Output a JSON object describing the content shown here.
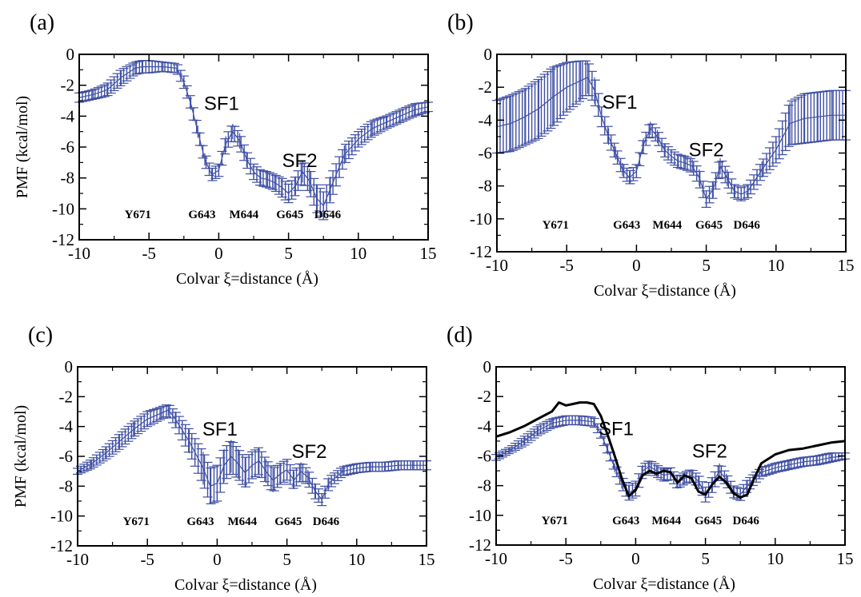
{
  "chart_data": [
    {
      "type": "line",
      "panel": "(a)",
      "xlabel": "Colvar ξ=distance  (Å)",
      "ylabel": "PMF (kcal/mol)",
      "xlim": [
        -10,
        15
      ],
      "ylim": [
        -12,
        0
      ],
      "xticks": [
        -10,
        -5,
        0,
        5,
        10,
        15
      ],
      "yticks": [
        0,
        -2,
        -4,
        -6,
        -8,
        -10,
        -12
      ],
      "annotations": [
        {
          "text": "SF1",
          "x": 0.2,
          "y": -3.6
        },
        {
          "text": "SF2",
          "x": 5.8,
          "y": -7.3
        }
      ],
      "residues": [
        {
          "text": "Y671",
          "x": -5.8
        },
        {
          "text": "G643",
          "x": -1.2
        },
        {
          "text": "M644",
          "x": 1.8
        },
        {
          "text": "G645",
          "x": 5.1
        },
        {
          "text": "D646",
          "x": 7.8
        }
      ],
      "series": [
        {
          "color": "#3f4fa3",
          "x": [
            -10,
            -9,
            -8,
            -7,
            -6,
            -5.5,
            -5,
            -4,
            -3,
            -2.5,
            -2,
            -1.5,
            -1,
            -0.5,
            0,
            0.5,
            1,
            1.5,
            2,
            2.5,
            3,
            3.5,
            4,
            4.5,
            5,
            5.5,
            6,
            6.5,
            7,
            7.5,
            8,
            9,
            10,
            11,
            12,
            13,
            14,
            15
          ],
          "y": [
            -2.8,
            -2.6,
            -2.3,
            -1.5,
            -0.9,
            -0.8,
            -0.8,
            -0.8,
            -0.9,
            -1.8,
            -3.2,
            -5.0,
            -6.8,
            -7.8,
            -7.5,
            -5.8,
            -5.0,
            -5.6,
            -6.8,
            -7.6,
            -8.0,
            -8.1,
            -8.3,
            -8.6,
            -9.0,
            -8.5,
            -7.6,
            -8.2,
            -9.3,
            -9.8,
            -8.7,
            -6.5,
            -5.5,
            -4.8,
            -4.4,
            -4.0,
            -3.6,
            -3.4
          ],
          "err": [
            0.3,
            0.3,
            0.4,
            0.5,
            0.4,
            0.4,
            0.4,
            0.3,
            0.3,
            0.4,
            0.4,
            0.4,
            0.4,
            0.4,
            0.4,
            0.5,
            0.5,
            0.5,
            0.5,
            0.5,
            0.5,
            0.5,
            0.5,
            0.6,
            0.6,
            0.6,
            0.7,
            0.8,
            0.9,
            0.9,
            0.8,
            0.6,
            0.5,
            0.5,
            0.4,
            0.4,
            0.4,
            0.3
          ]
        }
      ]
    },
    {
      "type": "line",
      "panel": "(b)",
      "xlabel": "Colvar ξ=distance  (Å)",
      "ylabel": "",
      "xlim": [
        -10,
        15
      ],
      "ylim": [
        -12,
        0
      ],
      "xticks": [
        -10,
        -5,
        0,
        5,
        10,
        15
      ],
      "yticks": [
        0,
        -2,
        -4,
        -6,
        -8,
        -10,
        -12
      ],
      "annotations": [
        {
          "text": "SF1",
          "x": -1.2,
          "y": -3.3
        },
        {
          "text": "SF2",
          "x": 5.0,
          "y": -6.2
        }
      ],
      "residues": [
        {
          "text": "Y671",
          "x": -5.8
        },
        {
          "text": "G643",
          "x": -0.7
        },
        {
          "text": "M644",
          "x": 2.2
        },
        {
          "text": "G645",
          "x": 5.2
        },
        {
          "text": "D646",
          "x": 7.9
        }
      ],
      "series": [
        {
          "color": "#3f4fa3",
          "x": [
            -10,
            -9,
            -8,
            -7,
            -6,
            -5,
            -4,
            -3.5,
            -3,
            -2.5,
            -2,
            -1.5,
            -1,
            -0.5,
            0,
            0.5,
            1,
            1.5,
            2,
            2.5,
            3,
            3.5,
            4,
            4.5,
            5,
            5.5,
            6,
            6.5,
            7,
            7.5,
            8,
            9,
            10,
            11,
            12,
            13,
            14,
            15
          ],
          "y": [
            -4.4,
            -4.2,
            -3.8,
            -3.3,
            -2.6,
            -2.0,
            -1.6,
            -1.4,
            -2.2,
            -3.8,
            -5.0,
            -6.0,
            -7.0,
            -7.5,
            -7.1,
            -5.5,
            -4.5,
            -5.0,
            -5.8,
            -6.2,
            -6.5,
            -6.6,
            -6.8,
            -7.5,
            -8.8,
            -8.2,
            -6.8,
            -7.5,
            -8.3,
            -8.5,
            -8.3,
            -7.0,
            -5.8,
            -4.2,
            -3.9,
            -3.8,
            -3.7,
            -3.7
          ],
          "err": [
            1.6,
            1.7,
            1.7,
            1.8,
            1.8,
            1.5,
            1.2,
            1.0,
            0.8,
            0.6,
            0.5,
            0.4,
            0.4,
            0.4,
            0.4,
            0.4,
            0.4,
            0.4,
            0.4,
            0.4,
            0.4,
            0.4,
            0.4,
            0.5,
            0.5,
            0.5,
            0.5,
            0.5,
            0.4,
            0.4,
            0.4,
            0.5,
            0.8,
            1.3,
            1.5,
            1.5,
            1.5,
            1.5
          ]
        }
      ]
    },
    {
      "type": "line",
      "panel": "(c)",
      "xlabel": "Colvar ξ=distance  (Å)",
      "ylabel": "PMF (kcal/mol)",
      "xlim": [
        -10,
        15
      ],
      "ylim": [
        -12,
        0
      ],
      "xticks": [
        -10,
        -5,
        0,
        5,
        10,
        15
      ],
      "yticks": [
        0,
        -2,
        -4,
        -6,
        -8,
        -10,
        -12
      ],
      "annotations": [
        {
          "text": "SF1",
          "x": 0.2,
          "y": -4.6
        },
        {
          "text": "SF2",
          "x": 6.6,
          "y": -6.1
        }
      ],
      "residues": [
        {
          "text": "Y671",
          "x": -5.8
        },
        {
          "text": "G643",
          "x": -1.2
        },
        {
          "text": "M644",
          "x": 1.8
        },
        {
          "text": "G645",
          "x": 5.1
        },
        {
          "text": "D646",
          "x": 7.8
        }
      ],
      "series": [
        {
          "color": "#3f4fa3",
          "x": [
            -10,
            -9,
            -8,
            -7,
            -6,
            -5,
            -4,
            -3.5,
            -3,
            -2,
            -1,
            -0.5,
            0,
            0.5,
            1,
            1.5,
            2,
            2.5,
            3,
            3.5,
            4,
            4.5,
            5,
            5.5,
            6,
            6.5,
            7,
            7.5,
            8,
            9,
            10,
            11,
            12,
            13,
            14,
            15
          ],
          "y": [
            -7.0,
            -6.5,
            -5.8,
            -5.0,
            -4.2,
            -3.5,
            -3.1,
            -2.9,
            -3.5,
            -5.0,
            -6.8,
            -8.0,
            -7.8,
            -6.6,
            -6.0,
            -6.5,
            -7.1,
            -6.6,
            -6.3,
            -7.0,
            -7.6,
            -7.2,
            -6.9,
            -7.6,
            -7.0,
            -7.4,
            -8.3,
            -8.9,
            -7.8,
            -7.0,
            -6.8,
            -6.7,
            -6.7,
            -6.6,
            -6.6,
            -6.6
          ],
          "err": [
            0.2,
            0.3,
            0.4,
            0.5,
            0.5,
            0.5,
            0.4,
            0.4,
            0.5,
            0.8,
            1.1,
            1.2,
            1.2,
            1.1,
            1.1,
            1.0,
            1.0,
            0.9,
            0.9,
            0.8,
            0.8,
            0.7,
            0.7,
            0.6,
            0.6,
            0.5,
            0.5,
            0.4,
            0.4,
            0.3,
            0.3,
            0.3,
            0.3,
            0.3,
            0.3,
            0.3
          ]
        }
      ]
    },
    {
      "type": "line",
      "panel": "(d)",
      "xlabel": "Colvar ξ=distance  (Å)",
      "ylabel": "",
      "xlim": [
        -10,
        15
      ],
      "ylim": [
        -12,
        0
      ],
      "xticks": [
        -10,
        -5,
        0,
        5,
        10,
        15
      ],
      "yticks": [
        0,
        -2,
        -4,
        -6,
        -8,
        -10,
        -12
      ],
      "annotations": [
        {
          "text": "SF1",
          "x": -1.4,
          "y": -4.6
        },
        {
          "text": "SF2",
          "x": 5.3,
          "y": -6.1
        }
      ],
      "residues": [
        {
          "text": "Y671",
          "x": -5.8
        },
        {
          "text": "G643",
          "x": -0.7
        },
        {
          "text": "M644",
          "x": 2.2
        },
        {
          "text": "G645",
          "x": 5.2
        },
        {
          "text": "D646",
          "x": 7.9
        }
      ],
      "series": [
        {
          "color": "#3f4fa3",
          "x": [
            -10,
            -9,
            -8,
            -7,
            -6,
            -5,
            -4,
            -3,
            -2.5,
            -2,
            -1.5,
            -1,
            -0.5,
            0,
            0.5,
            1,
            1.5,
            2,
            2.5,
            3,
            3.5,
            4,
            4.5,
            5,
            5.5,
            6,
            6.5,
            7,
            7.5,
            8,
            9,
            10,
            11,
            12,
            13,
            14,
            15
          ],
          "y": [
            -6.1,
            -5.6,
            -5.0,
            -4.3,
            -3.8,
            -3.6,
            -3.6,
            -3.7,
            -4.5,
            -5.6,
            -6.8,
            -7.8,
            -8.5,
            -8.2,
            -7.0,
            -6.7,
            -7.0,
            -7.3,
            -7.2,
            -7.8,
            -7.5,
            -7.3,
            -7.7,
            -8.6,
            -7.9,
            -7.0,
            -7.6,
            -8.4,
            -8.6,
            -8.0,
            -7.1,
            -6.8,
            -6.6,
            -6.4,
            -6.3,
            -6.1,
            -6.0
          ],
          "err": [
            0.2,
            0.2,
            0.3,
            0.3,
            0.3,
            0.3,
            0.3,
            0.3,
            0.3,
            0.3,
            0.3,
            0.4,
            0.5,
            0.5,
            0.4,
            0.4,
            0.4,
            0.4,
            0.4,
            0.4,
            0.4,
            0.4,
            0.4,
            0.5,
            0.5,
            0.5,
            0.4,
            0.4,
            0.4,
            0.4,
            0.3,
            0.3,
            0.3,
            0.3,
            0.3,
            0.3,
            0.2
          ]
        },
        {
          "color": "#000000",
          "x": [
            -10,
            -9,
            -8,
            -7,
            -6,
            -5.5,
            -5,
            -4.5,
            -4,
            -3.5,
            -3,
            -2.5,
            -2,
            -1.5,
            -1,
            -0.5,
            0,
            0.5,
            1,
            1.5,
            2,
            2.5,
            3,
            3.5,
            4,
            4.5,
            5,
            5.5,
            6,
            6.5,
            7,
            7.5,
            8,
            8.5,
            9,
            10,
            11,
            12,
            13,
            14,
            15
          ],
          "y": [
            -4.7,
            -4.4,
            -4.0,
            -3.5,
            -3.0,
            -2.4,
            -2.6,
            -2.5,
            -2.4,
            -2.4,
            -2.5,
            -3.3,
            -4.6,
            -6.0,
            -7.5,
            -8.7,
            -8.3,
            -7.3,
            -7.0,
            -7.2,
            -7.0,
            -7.1,
            -7.8,
            -7.3,
            -7.5,
            -8.4,
            -8.6,
            -7.9,
            -7.4,
            -7.8,
            -8.5,
            -8.8,
            -8.6,
            -7.5,
            -6.5,
            -5.9,
            -5.6,
            -5.5,
            -5.3,
            -5.1,
            -5.0
          ]
        }
      ]
    }
  ]
}
